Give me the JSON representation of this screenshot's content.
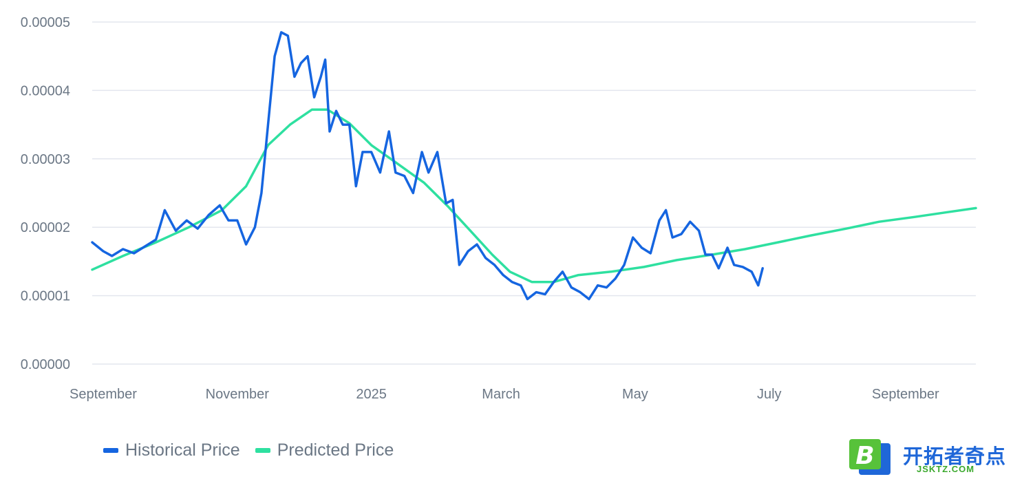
{
  "chart_data": {
    "type": "line",
    "title": "",
    "xlabel": "",
    "ylabel": "",
    "ylim": [
      0,
      5e-05
    ],
    "y_ticks": [
      "0.00000",
      "0.00001",
      "0.00002",
      "0.00003",
      "0.00004",
      "0.00005"
    ],
    "x_ticks": [
      "September",
      "November",
      "2025",
      "March",
      "May",
      "July",
      "September"
    ],
    "x_tick_dates": [
      "2024-09-01",
      "2024-11-01",
      "2025-01-01",
      "2025-03-01",
      "2025-05-01",
      "2025-07-01",
      "2025-09-01"
    ],
    "x_range": [
      "2024-08-27",
      "2025-10-03"
    ],
    "grid": true,
    "legend_position": "bottom-left",
    "series": [
      {
        "name": "Historical Price",
        "color": "#1565e0",
        "points": [
          [
            "2024-08-27",
            1.78e-05
          ],
          [
            "2024-09-01",
            1.65e-05
          ],
          [
            "2024-09-05",
            1.58e-05
          ],
          [
            "2024-09-10",
            1.68e-05
          ],
          [
            "2024-09-15",
            1.62e-05
          ],
          [
            "2024-09-20",
            1.72e-05
          ],
          [
            "2024-09-25",
            1.82e-05
          ],
          [
            "2024-09-29",
            2.25e-05
          ],
          [
            "2024-10-04",
            1.95e-05
          ],
          [
            "2024-10-09",
            2.1e-05
          ],
          [
            "2024-10-14",
            1.98e-05
          ],
          [
            "2024-10-19",
            2.18e-05
          ],
          [
            "2024-10-24",
            2.32e-05
          ],
          [
            "2024-10-28",
            2.1e-05
          ],
          [
            "2024-11-01",
            2.1e-05
          ],
          [
            "2024-11-05",
            1.75e-05
          ],
          [
            "2024-11-09",
            2e-05
          ],
          [
            "2024-11-12",
            2.5e-05
          ],
          [
            "2024-11-15",
            3.5e-05
          ],
          [
            "2024-11-18",
            4.5e-05
          ],
          [
            "2024-11-21",
            4.85e-05
          ],
          [
            "2024-11-24",
            4.8e-05
          ],
          [
            "2024-11-27",
            4.2e-05
          ],
          [
            "2024-11-30",
            4.4e-05
          ],
          [
            "2024-12-03",
            4.5e-05
          ],
          [
            "2024-12-06",
            3.9e-05
          ],
          [
            "2024-12-09",
            4.2e-05
          ],
          [
            "2024-12-11",
            4.45e-05
          ],
          [
            "2024-12-13",
            3.4e-05
          ],
          [
            "2024-12-16",
            3.7e-05
          ],
          [
            "2024-12-19",
            3.5e-05
          ],
          [
            "2024-12-22",
            3.5e-05
          ],
          [
            "2024-12-25",
            2.6e-05
          ],
          [
            "2024-12-28",
            3.1e-05
          ],
          [
            "2025-01-01",
            3.1e-05
          ],
          [
            "2025-01-05",
            2.8e-05
          ],
          [
            "2025-01-09",
            3.4e-05
          ],
          [
            "2025-01-12",
            2.8e-05
          ],
          [
            "2025-01-16",
            2.75e-05
          ],
          [
            "2025-01-20",
            2.5e-05
          ],
          [
            "2025-01-24",
            3.1e-05
          ],
          [
            "2025-01-27",
            2.8e-05
          ],
          [
            "2025-01-31",
            3.1e-05
          ],
          [
            "2025-02-04",
            2.35e-05
          ],
          [
            "2025-02-07",
            2.4e-05
          ],
          [
            "2025-02-10",
            1.45e-05
          ],
          [
            "2025-02-14",
            1.65e-05
          ],
          [
            "2025-02-18",
            1.75e-05
          ],
          [
            "2025-02-22",
            1.55e-05
          ],
          [
            "2025-02-26",
            1.45e-05
          ],
          [
            "2025-03-02",
            1.3e-05
          ],
          [
            "2025-03-06",
            1.2e-05
          ],
          [
            "2025-03-10",
            1.15e-05
          ],
          [
            "2025-03-13",
            9.5e-06
          ],
          [
            "2025-03-17",
            1.05e-05
          ],
          [
            "2025-03-21",
            1.02e-05
          ],
          [
            "2025-03-25",
            1.2e-05
          ],
          [
            "2025-03-29",
            1.35e-05
          ],
          [
            "2025-04-02",
            1.12e-05
          ],
          [
            "2025-04-06",
            1.05e-05
          ],
          [
            "2025-04-10",
            9.5e-06
          ],
          [
            "2025-04-14",
            1.15e-05
          ],
          [
            "2025-04-18",
            1.12e-05
          ],
          [
            "2025-04-22",
            1.25e-05
          ],
          [
            "2025-04-26",
            1.45e-05
          ],
          [
            "2025-04-30",
            1.85e-05
          ],
          [
            "2025-05-04",
            1.7e-05
          ],
          [
            "2025-05-08",
            1.62e-05
          ],
          [
            "2025-05-12",
            2.1e-05
          ],
          [
            "2025-05-15",
            2.25e-05
          ],
          [
            "2025-05-18",
            1.85e-05
          ],
          [
            "2025-05-22",
            1.9e-05
          ],
          [
            "2025-05-26",
            2.08e-05
          ],
          [
            "2025-05-30",
            1.95e-05
          ],
          [
            "2025-06-02",
            1.6e-05
          ],
          [
            "2025-06-05",
            1.6e-05
          ],
          [
            "2025-06-08",
            1.4e-05
          ],
          [
            "2025-06-12",
            1.7e-05
          ],
          [
            "2025-06-15",
            1.45e-05
          ],
          [
            "2025-06-19",
            1.42e-05
          ],
          [
            "2025-06-23",
            1.35e-05
          ],
          [
            "2025-06-26",
            1.15e-05
          ],
          [
            "2025-06-28",
            1.4e-05
          ]
        ]
      },
      {
        "name": "Predicted Price",
        "color": "#2ee0a0",
        "points": [
          [
            "2024-08-27",
            1.38e-05
          ],
          [
            "2024-09-10",
            1.58e-05
          ],
          [
            "2024-09-25",
            1.78e-05
          ],
          [
            "2024-10-10",
            2e-05
          ],
          [
            "2024-10-25",
            2.25e-05
          ],
          [
            "2024-11-05",
            2.6e-05
          ],
          [
            "2024-11-15",
            3.2e-05
          ],
          [
            "2024-11-25",
            3.5e-05
          ],
          [
            "2024-12-05",
            3.72e-05
          ],
          [
            "2024-12-12",
            3.72e-05
          ],
          [
            "2024-12-22",
            3.52e-05
          ],
          [
            "2025-01-01",
            3.2e-05
          ],
          [
            "2025-01-12",
            2.95e-05
          ],
          [
            "2025-01-25",
            2.65e-05
          ],
          [
            "2025-02-05",
            2.3e-05
          ],
          [
            "2025-02-15",
            1.95e-05
          ],
          [
            "2025-02-25",
            1.6e-05
          ],
          [
            "2025-03-05",
            1.35e-05
          ],
          [
            "2025-03-15",
            1.2e-05
          ],
          [
            "2025-03-25",
            1.2e-05
          ],
          [
            "2025-04-05",
            1.3e-05
          ],
          [
            "2025-04-20",
            1.35e-05
          ],
          [
            "2025-05-05",
            1.42e-05
          ],
          [
            "2025-05-20",
            1.52e-05
          ],
          [
            "2025-06-05",
            1.6e-05
          ],
          [
            "2025-06-20",
            1.68e-05
          ],
          [
            "2025-07-05",
            1.78e-05
          ],
          [
            "2025-07-20",
            1.88e-05
          ],
          [
            "2025-08-05",
            1.98e-05
          ],
          [
            "2025-08-20",
            2.08e-05
          ],
          [
            "2025-09-05",
            2.15e-05
          ],
          [
            "2025-09-20",
            2.22e-05
          ],
          [
            "2025-10-03",
            2.28e-05
          ]
        ]
      }
    ]
  },
  "legend": {
    "historical": "Historical Price",
    "predicted": "Predicted Price"
  },
  "watermark": {
    "badge_letter": "B",
    "name": "开拓者奇点",
    "site": "JSKTZ.COM"
  }
}
